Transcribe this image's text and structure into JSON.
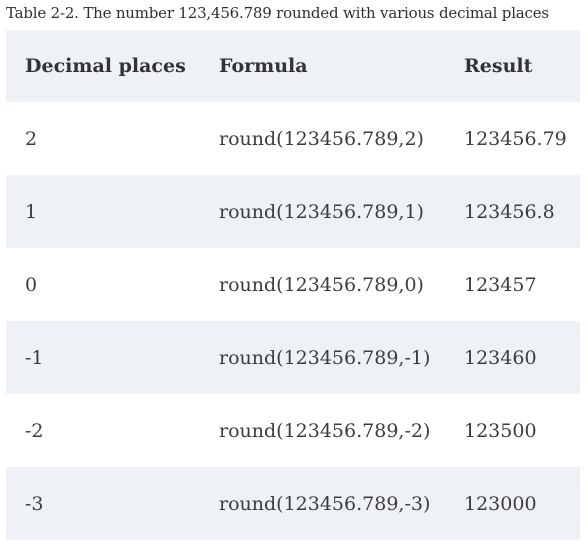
{
  "caption": "Table 2-2. The number 123,456.789 rounded with various decimal places",
  "columns": [
    "Decimal places",
    "Formula",
    "Result"
  ],
  "rows": [
    [
      "2",
      "round(123456.789,2)",
      "123456.79"
    ],
    [
      "1",
      "round(123456.789,1)",
      "123456.8"
    ],
    [
      "0",
      "round(123456.789,0)",
      "123457"
    ],
    [
      "-1",
      "round(123456.789,-1)",
      "123460"
    ],
    [
      "-2",
      "round(123456.789,-2)",
      "123500"
    ],
    [
      "-3",
      "round(123456.789,-3)",
      "123000"
    ]
  ],
  "colors": {
    "shaded_row": "#eef1f5",
    "text": "#3c3c3c"
  }
}
